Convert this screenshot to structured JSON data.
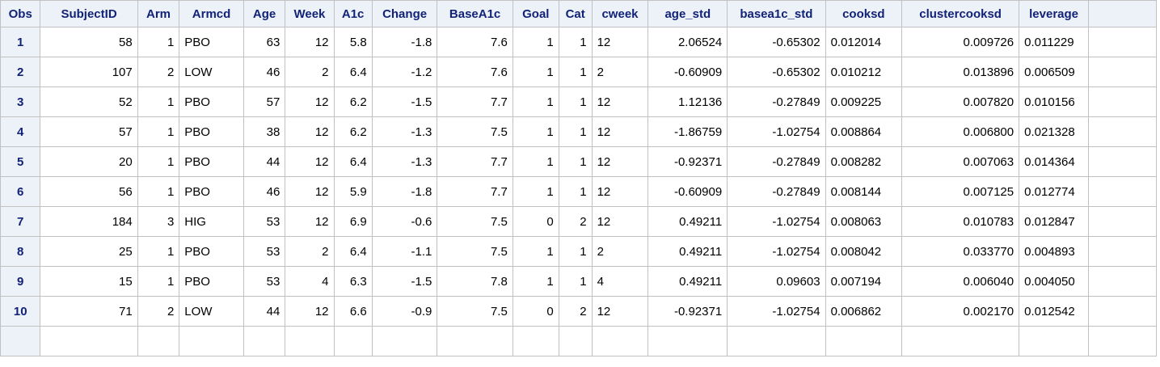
{
  "columns": [
    "Obs",
    "SubjectID",
    "Arm",
    "Armcd",
    "Age",
    "Week",
    "A1c",
    "Change",
    "BaseA1c",
    "Goal",
    "Cat",
    "cweek",
    "age_std",
    "basea1c_std",
    "cooksd",
    "clustercooksd",
    "leverage"
  ],
  "align": [
    "c",
    "r",
    "r",
    "l",
    "r",
    "r",
    "r",
    "r",
    "r",
    "r",
    "r",
    "l",
    "r",
    "r",
    "l",
    "r",
    "l"
  ],
  "rows": [
    [
      "1",
      "58",
      "1",
      "PBO",
      "63",
      "12",
      "5.8",
      "-1.8",
      "7.6",
      "1",
      "1",
      "12",
      "2.06524",
      "-0.65302",
      "0.012014",
      "0.009726",
      "0.011229"
    ],
    [
      "2",
      "107",
      "2",
      "LOW",
      "46",
      "2",
      "6.4",
      "-1.2",
      "7.6",
      "1",
      "1",
      "2",
      "-0.60909",
      "-0.65302",
      "0.010212",
      "0.013896",
      "0.006509"
    ],
    [
      "3",
      "52",
      "1",
      "PBO",
      "57",
      "12",
      "6.2",
      "-1.5",
      "7.7",
      "1",
      "1",
      "12",
      "1.12136",
      "-0.27849",
      "0.009225",
      "0.007820",
      "0.010156"
    ],
    [
      "4",
      "57",
      "1",
      "PBO",
      "38",
      "12",
      "6.2",
      "-1.3",
      "7.5",
      "1",
      "1",
      "12",
      "-1.86759",
      "-1.02754",
      "0.008864",
      "0.006800",
      "0.021328"
    ],
    [
      "5",
      "20",
      "1",
      "PBO",
      "44",
      "12",
      "6.4",
      "-1.3",
      "7.7",
      "1",
      "1",
      "12",
      "-0.92371",
      "-0.27849",
      "0.008282",
      "0.007063",
      "0.014364"
    ],
    [
      "6",
      "56",
      "1",
      "PBO",
      "46",
      "12",
      "5.9",
      "-1.8",
      "7.7",
      "1",
      "1",
      "12",
      "-0.60909",
      "-0.27849",
      "0.008144",
      "0.007125",
      "0.012774"
    ],
    [
      "7",
      "184",
      "3",
      "HIG",
      "53",
      "12",
      "6.9",
      "-0.6",
      "7.5",
      "0",
      "2",
      "12",
      "0.49211",
      "-1.02754",
      "0.008063",
      "0.010783",
      "0.012847"
    ],
    [
      "8",
      "25",
      "1",
      "PBO",
      "53",
      "2",
      "6.4",
      "-1.1",
      "7.5",
      "1",
      "1",
      "2",
      "0.49211",
      "-1.02754",
      "0.008042",
      "0.033770",
      "0.004893"
    ],
    [
      "9",
      "15",
      "1",
      "PBO",
      "53",
      "4",
      "6.3",
      "-1.5",
      "7.8",
      "1",
      "1",
      "4",
      "0.49211",
      "0.09603",
      "0.007194",
      "0.006040",
      "0.004050"
    ],
    [
      "10",
      "71",
      "2",
      "LOW",
      "44",
      "12",
      "6.6",
      "-0.9",
      "7.5",
      "0",
      "2",
      "12",
      "-0.92371",
      "-1.02754",
      "0.006862",
      "0.002170",
      "0.012542"
    ]
  ],
  "colors": {
    "header_bg": "#edf2f9",
    "header_text": "#112277",
    "border": "#c1c1c1"
  }
}
